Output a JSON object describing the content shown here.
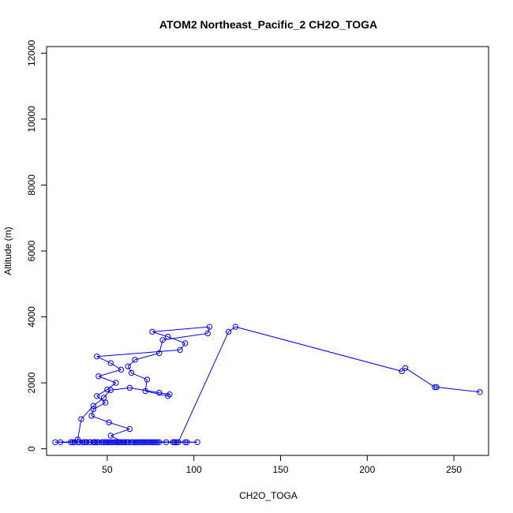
{
  "chart_data": {
    "type": "line",
    "title": "ATOM2 Northeast_Pacific_2 CH2O_TOGA",
    "xlabel": "CH2O_TOGA",
    "ylabel": "Altitude (m)",
    "xlim": [
      15,
      270
    ],
    "ylim": [
      -200,
      12200
    ],
    "xticks": [
      50,
      100,
      150,
      200,
      250
    ],
    "yticks": [
      0,
      2000,
      4000,
      6000,
      8000,
      10000,
      12000
    ],
    "grid": false,
    "legend": "none",
    "series_color": "#0000ff",
    "x": [
      29,
      33,
      35,
      42,
      48,
      52,
      63,
      80,
      86,
      85,
      72,
      73,
      64,
      62,
      66,
      80,
      82,
      108,
      109,
      76,
      85,
      95,
      92,
      44,
      52,
      58,
      45,
      55,
      50,
      44,
      49,
      42,
      41,
      51,
      63,
      52,
      59,
      62,
      88,
      102,
      62,
      57,
      64,
      47,
      30,
      23,
      40,
      42,
      43,
      44,
      43,
      42,
      80,
      84,
      96,
      95,
      57,
      43,
      37,
      38,
      36,
      40,
      34,
      33,
      31,
      38,
      37,
      40,
      20,
      49,
      48,
      52,
      50,
      51,
      45,
      47,
      49,
      53,
      54,
      55,
      57,
      56,
      58,
      60,
      61,
      62,
      65,
      66,
      67,
      68,
      69,
      70,
      71,
      72,
      73,
      74,
      75,
      76,
      77,
      78,
      79,
      88,
      89,
      89,
      90,
      91,
      120,
      124,
      220,
      222,
      239,
      240,
      265
    ],
    "y": [
      200,
      280,
      900,
      1300,
      1550,
      1780,
      1850,
      1700,
      1650,
      1600,
      1750,
      2100,
      2300,
      2500,
      2700,
      2900,
      3300,
      3500,
      3700,
      3550,
      3400,
      3200,
      3000,
      2800,
      2600,
      2400,
      2200,
      2000,
      1800,
      1600,
      1400,
      1200,
      1000,
      800,
      600,
      400,
      200,
      200,
      200,
      200,
      200,
      200,
      200,
      200,
      200,
      200,
      200,
      200,
      200,
      200,
      200,
      200,
      200,
      200,
      200,
      200,
      200,
      200,
      200,
      200,
      200,
      200,
      200,
      200,
      200,
      200,
      200,
      200,
      200,
      200,
      200,
      200,
      200,
      200,
      200,
      200,
      200,
      200,
      200,
      200,
      200,
      200,
      200,
      200,
      200,
      200,
      200,
      200,
      200,
      200,
      200,
      200,
      200,
      200,
      200,
      200,
      200,
      200,
      200,
      200,
      200,
      200,
      200,
      200,
      200,
      200,
      3550,
      3700,
      2350,
      2450,
      1870,
      1870,
      1720
    ]
  }
}
